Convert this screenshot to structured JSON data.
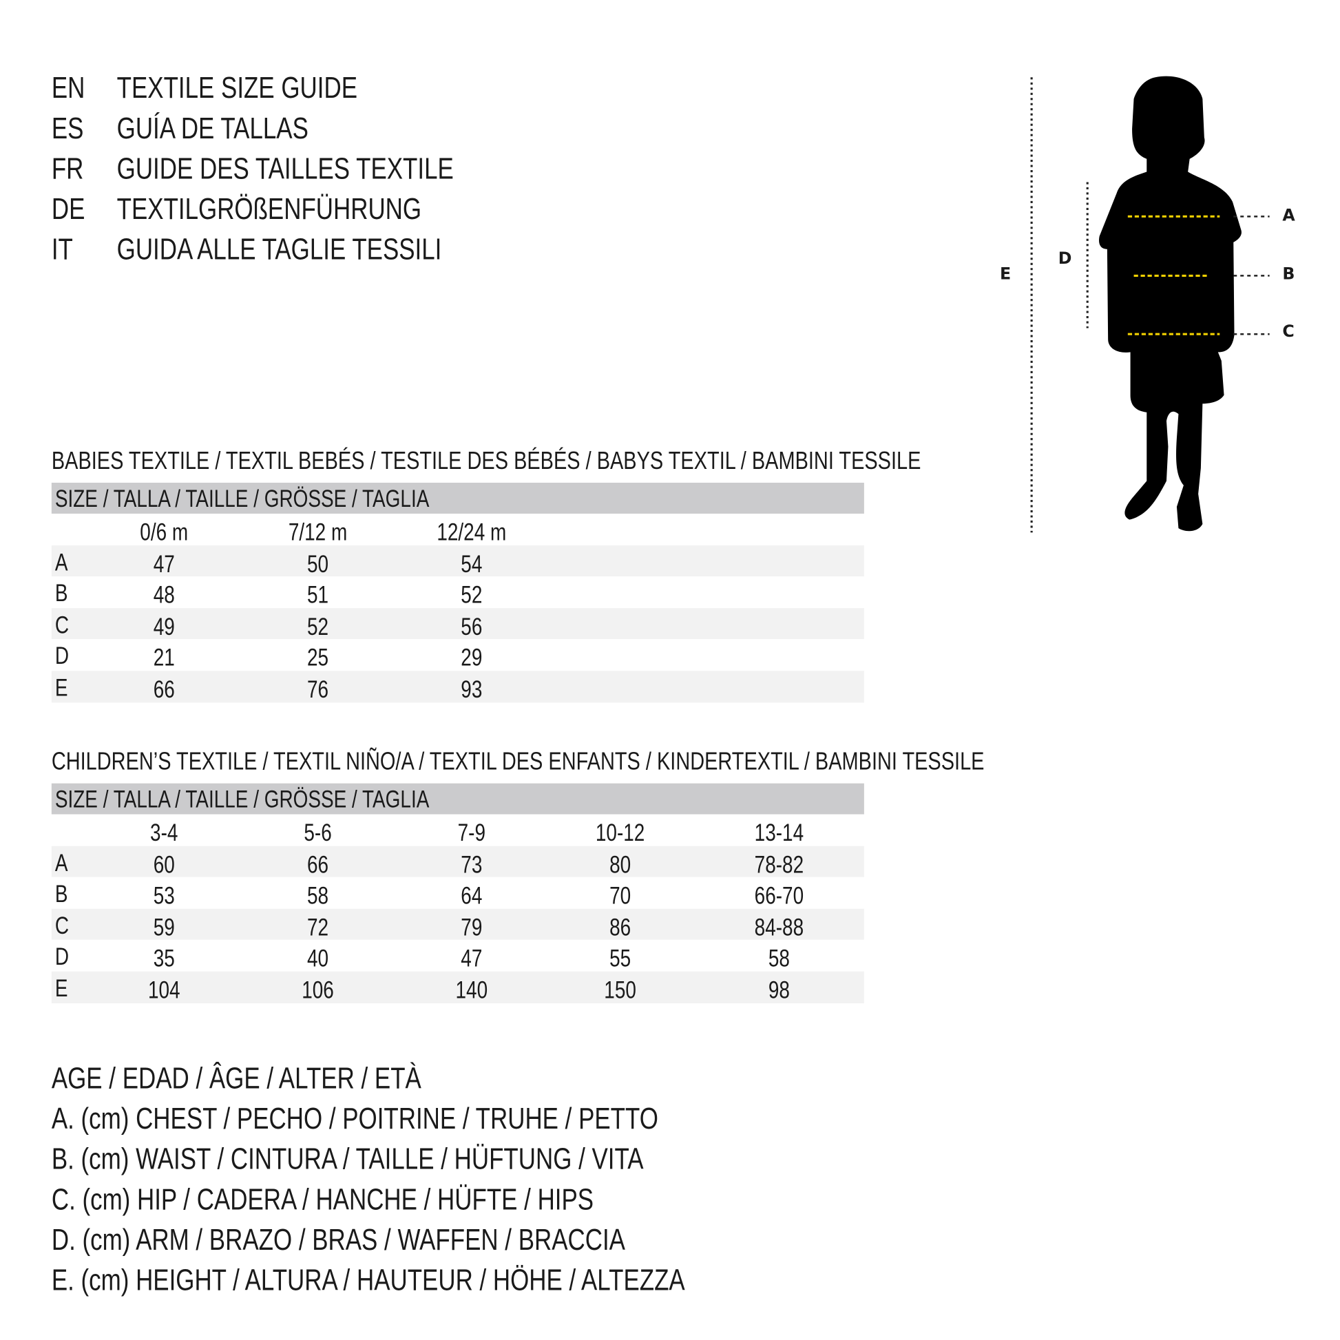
{
  "titles": [
    {
      "lang": "EN",
      "text": "TEXTILE SIZE GUIDE"
    },
    {
      "lang": "ES",
      "text": "GUÍA DE TALLAS"
    },
    {
      "lang": "FR",
      "text": "GUIDE DES TAILLES TEXTILE"
    },
    {
      "lang": "DE",
      "text": "TEXTILGRÖßENFÜHRUNG"
    },
    {
      "lang": "IT",
      "text": "GUIDA ALLE TAGLIE TESSILI"
    }
  ],
  "babies": {
    "heading": "BABIES TEXTILE / TEXTIL BEBÉS / TESTILE DES BÉBÉS / BABYS TEXTIL / BAMBINI TESSILE",
    "size_header": "SIZE / TALLA / TAILLE / GRÖSSE / TAGLIA",
    "columns": [
      "0/6 m",
      "7/12 m",
      "12/24 m"
    ],
    "rows": [
      {
        "label": "A",
        "values": [
          "47",
          "50",
          "54"
        ]
      },
      {
        "label": "B",
        "values": [
          "48",
          "51",
          "52"
        ]
      },
      {
        "label": "C",
        "values": [
          "49",
          "52",
          "56"
        ]
      },
      {
        "label": "D",
        "values": [
          "21",
          "25",
          "29"
        ]
      },
      {
        "label": "E",
        "values": [
          "66",
          "76",
          "93"
        ]
      }
    ]
  },
  "children": {
    "heading": "CHILDREN’S TEXTILE / TEXTIL NIÑO/A / TEXTIL DES ENFANTS / KINDERTEXTIL / BAMBINI TESSILE",
    "size_header": "SIZE / TALLA / TAILLE / GRÖSSE / TAGLIA",
    "columns": [
      "3-4",
      "5-6",
      "7-9",
      "10-12",
      "13-14"
    ],
    "rows": [
      {
        "label": "A",
        "values": [
          "60",
          "66",
          "73",
          "80",
          "78-82"
        ]
      },
      {
        "label": "B",
        "values": [
          "53",
          "58",
          "64",
          "70",
          "66-70"
        ]
      },
      {
        "label": "C",
        "values": [
          "59",
          "72",
          "79",
          "86",
          "84-88"
        ]
      },
      {
        "label": "D",
        "values": [
          "35",
          "40",
          "47",
          "55",
          "58"
        ]
      },
      {
        "label": "E",
        "values": [
          "104",
          "106",
          "140",
          "150",
          "98"
        ]
      }
    ]
  },
  "legend": [
    "AGE / EDAD / ÂGE / ALTER / ETÀ",
    "A. (cm) CHEST / PECHO / POITRINE / TRUHE / PETTO",
    "B. (cm) WAIST / CINTURA / TAILLE / HÜFTUNG / VITA",
    "C. (cm) HIP / CADERA / HANCHE / HÜFTE / HIPS",
    "D. (cm) ARM / BRAZO / BRAS / WAFFEN / BRACCIA",
    "E. (cm) HEIGHT / ALTURA / HAUTEUR / HÖHE / ALTEZZA"
  ],
  "figure": {
    "labels": {
      "A": "A",
      "B": "B",
      "C": "C",
      "D": "D",
      "E": "E"
    },
    "icon": "child-silhouette",
    "measure_color": "#f0d000"
  },
  "colors": {
    "header_band": "#cbcbcd",
    "stripe": "#f2f2f2",
    "text": "#1a1a1a"
  }
}
